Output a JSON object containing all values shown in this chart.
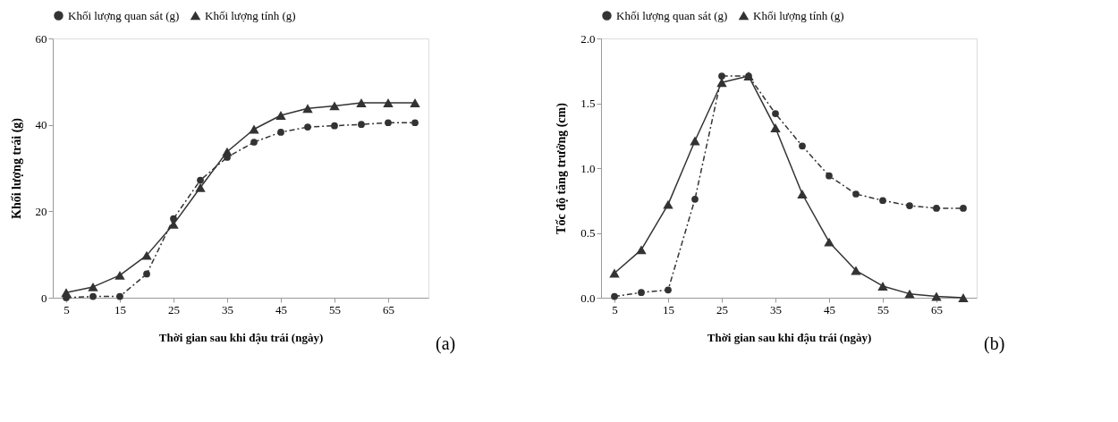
{
  "chart_data": [
    {
      "type": "line",
      "xlabel": "Thời gian sau khi đậu trái (ngày)",
      "ylabel": "Khối lượng trái (g)",
      "x": [
        5,
        10,
        15,
        20,
        25,
        30,
        35,
        40,
        45,
        50,
        55,
        60,
        65,
        70
      ],
      "series": [
        {
          "name": "Khối lượng quan sát (g)",
          "color": "#333333",
          "marker": "circle",
          "line_style": "dashdot",
          "values": [
            0,
            0.3,
            0.3,
            5.5,
            18.3,
            27.2,
            32.5,
            36,
            38.3,
            39.5,
            39.8,
            40.1,
            40.5,
            40.5
          ]
        },
        {
          "name": "Khối lượng tính (g)",
          "color": "#333333",
          "marker": "triangle",
          "line_style": "solid",
          "values": [
            1.2,
            2.5,
            5.2,
            9.8,
            17,
            25.5,
            33.8,
            39,
            42.2,
            43.8,
            44.4,
            45.1,
            45.1,
            45.1
          ]
        }
      ],
      "xlim": [
        2.5,
        72.5
      ],
      "xticks": [
        5,
        15,
        25,
        35,
        45,
        55,
        65
      ],
      "ylim": [
        0,
        60
      ],
      "yticks": [
        0,
        20,
        40,
        60
      ],
      "grid": false,
      "legend": "top",
      "annotations": [
        "(a)"
      ]
    },
    {
      "type": "line",
      "xlabel": "Thời gian sau khi đậu trái (ngày)",
      "ylabel": "Tốc độ tăng trưởng (cm)",
      "x": [
        5,
        10,
        15,
        20,
        25,
        30,
        35,
        40,
        45,
        50,
        55,
        60,
        65,
        70
      ],
      "series": [
        {
          "name": "Khối lượng quan sát (g)",
          "color": "#333333",
          "marker": "circle",
          "line_style": "dashdot",
          "values": [
            0.01,
            0.04,
            0.06,
            0.76,
            1.71,
            1.71,
            1.42,
            1.17,
            0.94,
            0.8,
            0.75,
            0.71,
            0.69,
            0.69
          ]
        },
        {
          "name": "Khối lượng tính (g)",
          "color": "#333333",
          "marker": "triangle",
          "line_style": "solid",
          "values": [
            0.19,
            0.37,
            0.72,
            1.21,
            1.66,
            1.71,
            1.31,
            0.8,
            0.43,
            0.21,
            0.09,
            0.03,
            0.01,
            0.0
          ]
        }
      ],
      "xlim": [
        2.5,
        72.5
      ],
      "xticks": [
        5,
        15,
        25,
        35,
        45,
        55,
        65
      ],
      "ylim": [
        0,
        2.0
      ],
      "yticks": [
        {
          "value": 0,
          "label": "0.0"
        },
        {
          "value": 0.5,
          "label": "0.5"
        },
        {
          "value": 1.0,
          "label": "1.0"
        },
        {
          "value": 1.5,
          "label": "1.5"
        },
        {
          "value": 2.0,
          "label": "2.0"
        }
      ],
      "grid": false,
      "legend": "top",
      "annotations": [
        "(b)"
      ]
    }
  ]
}
